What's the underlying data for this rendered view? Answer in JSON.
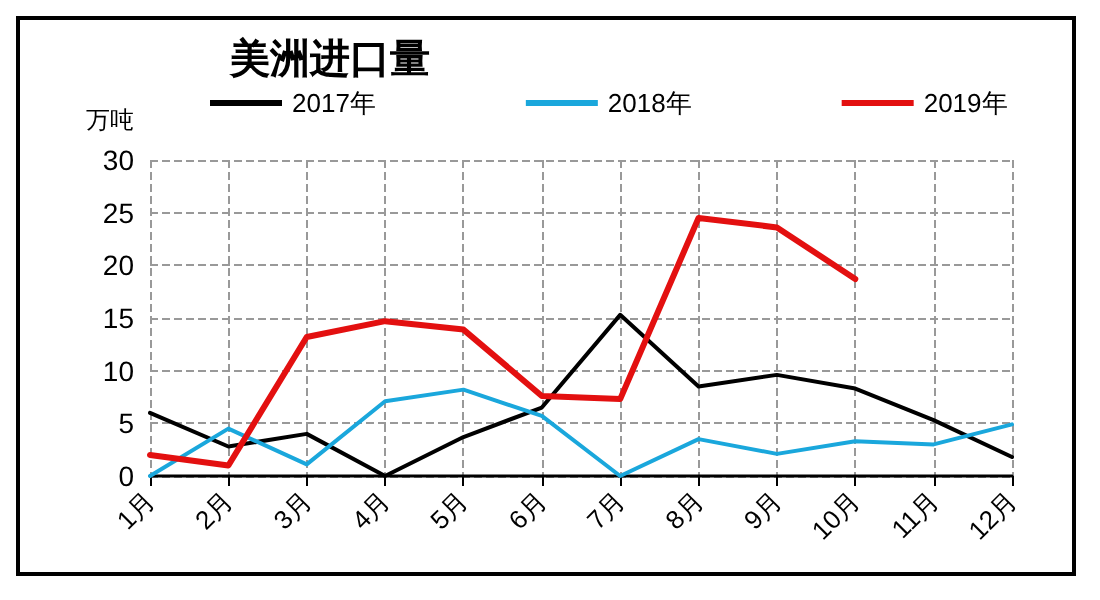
{
  "chart_data": {
    "type": "line",
    "title": "美洲进口量",
    "ylabel": "万吨",
    "categories": [
      "1月",
      "2月",
      "3月",
      "4月",
      "5月",
      "6月",
      "7月",
      "8月",
      "9月",
      "10月",
      "11月",
      "12月"
    ],
    "series": [
      {
        "name": "2017年",
        "color": "#000000",
        "values": [
          6.0,
          2.8,
          4.0,
          0,
          3.7,
          6.5,
          15.3,
          8.5,
          9.6,
          8.3,
          5.3,
          1.8
        ]
      },
      {
        "name": "2018年",
        "color": "#1aa7dc",
        "values": [
          0,
          4.5,
          1.1,
          7.1,
          8.2,
          5.7,
          0,
          3.5,
          2.1,
          3.3,
          3.0,
          4.9
        ]
      },
      {
        "name": "2019年",
        "color": "#e31010",
        "values": [
          2.0,
          1.0,
          13.2,
          14.7,
          13.9,
          7.6,
          7.3,
          24.5,
          23.6,
          18.7,
          null,
          null
        ]
      }
    ],
    "ylim": [
      0,
      30
    ],
    "yticks": [
      0,
      5,
      10,
      15,
      20,
      25,
      30
    ],
    "grid": true,
    "legend": "top",
    "marker": "none",
    "line_style": "solid"
  }
}
